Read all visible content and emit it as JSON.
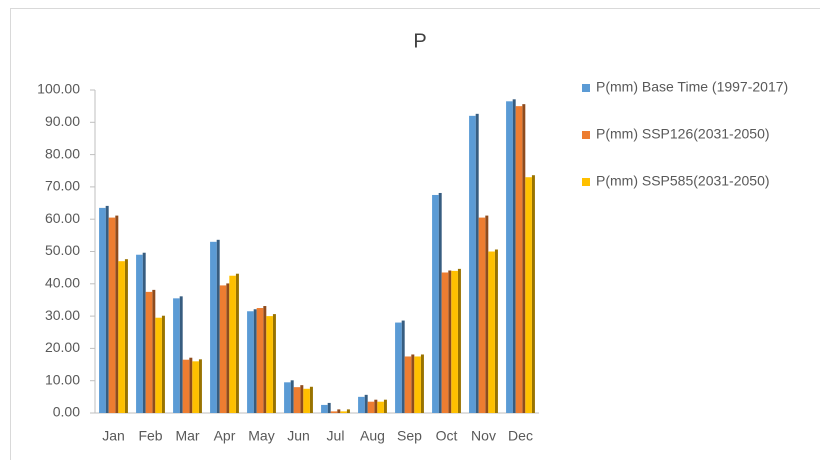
{
  "chart_data": {
    "type": "bar",
    "title": "P",
    "categories": [
      "Jan",
      "Feb",
      "Mar",
      "Apr",
      "May",
      "Jun",
      "Jul",
      "Aug",
      "Sep",
      "Oct",
      "Nov",
      "Dec"
    ],
    "series": [
      {
        "name": "P(mm) Base Time (1997-2017)",
        "color": "#5b9bd5",
        "values": [
          63.5,
          49,
          35.5,
          53,
          31.5,
          9.5,
          2.5,
          5,
          28,
          67.5,
          92,
          96.5
        ]
      },
      {
        "name": "P(mm) SSP126(2031-2050)",
        "color": "#ed7d31",
        "values": [
          60.5,
          37.5,
          16.5,
          39.5,
          32.5,
          8,
          0.5,
          3.5,
          17.5,
          43.5,
          60.5,
          95
        ]
      },
      {
        "name": "P(mm) SSP585(2031-2050)",
        "color": "#ffc000",
        "values": [
          47,
          29.5,
          16,
          42.5,
          30,
          7.5,
          0.5,
          3.5,
          17.5,
          44,
          50,
          73
        ]
      }
    ],
    "ylim": [
      0,
      100
    ],
    "yticks": [
      {
        "value": 0,
        "label": "0.00"
      },
      {
        "value": 10,
        "label": "10.00"
      },
      {
        "value": 20,
        "label": "20.00"
      },
      {
        "value": 30,
        "label": "30.00"
      },
      {
        "value": 40,
        "label": "40.00"
      },
      {
        "value": 50,
        "label": "50.00"
      },
      {
        "value": 60,
        "label": "60.00"
      },
      {
        "value": 70,
        "label": "70.00"
      },
      {
        "value": 80,
        "label": "80.00"
      },
      {
        "value": 90,
        "label": "90.00"
      },
      {
        "value": 100,
        "label": "100.00"
      }
    ],
    "grid": false,
    "legend": "right"
  }
}
